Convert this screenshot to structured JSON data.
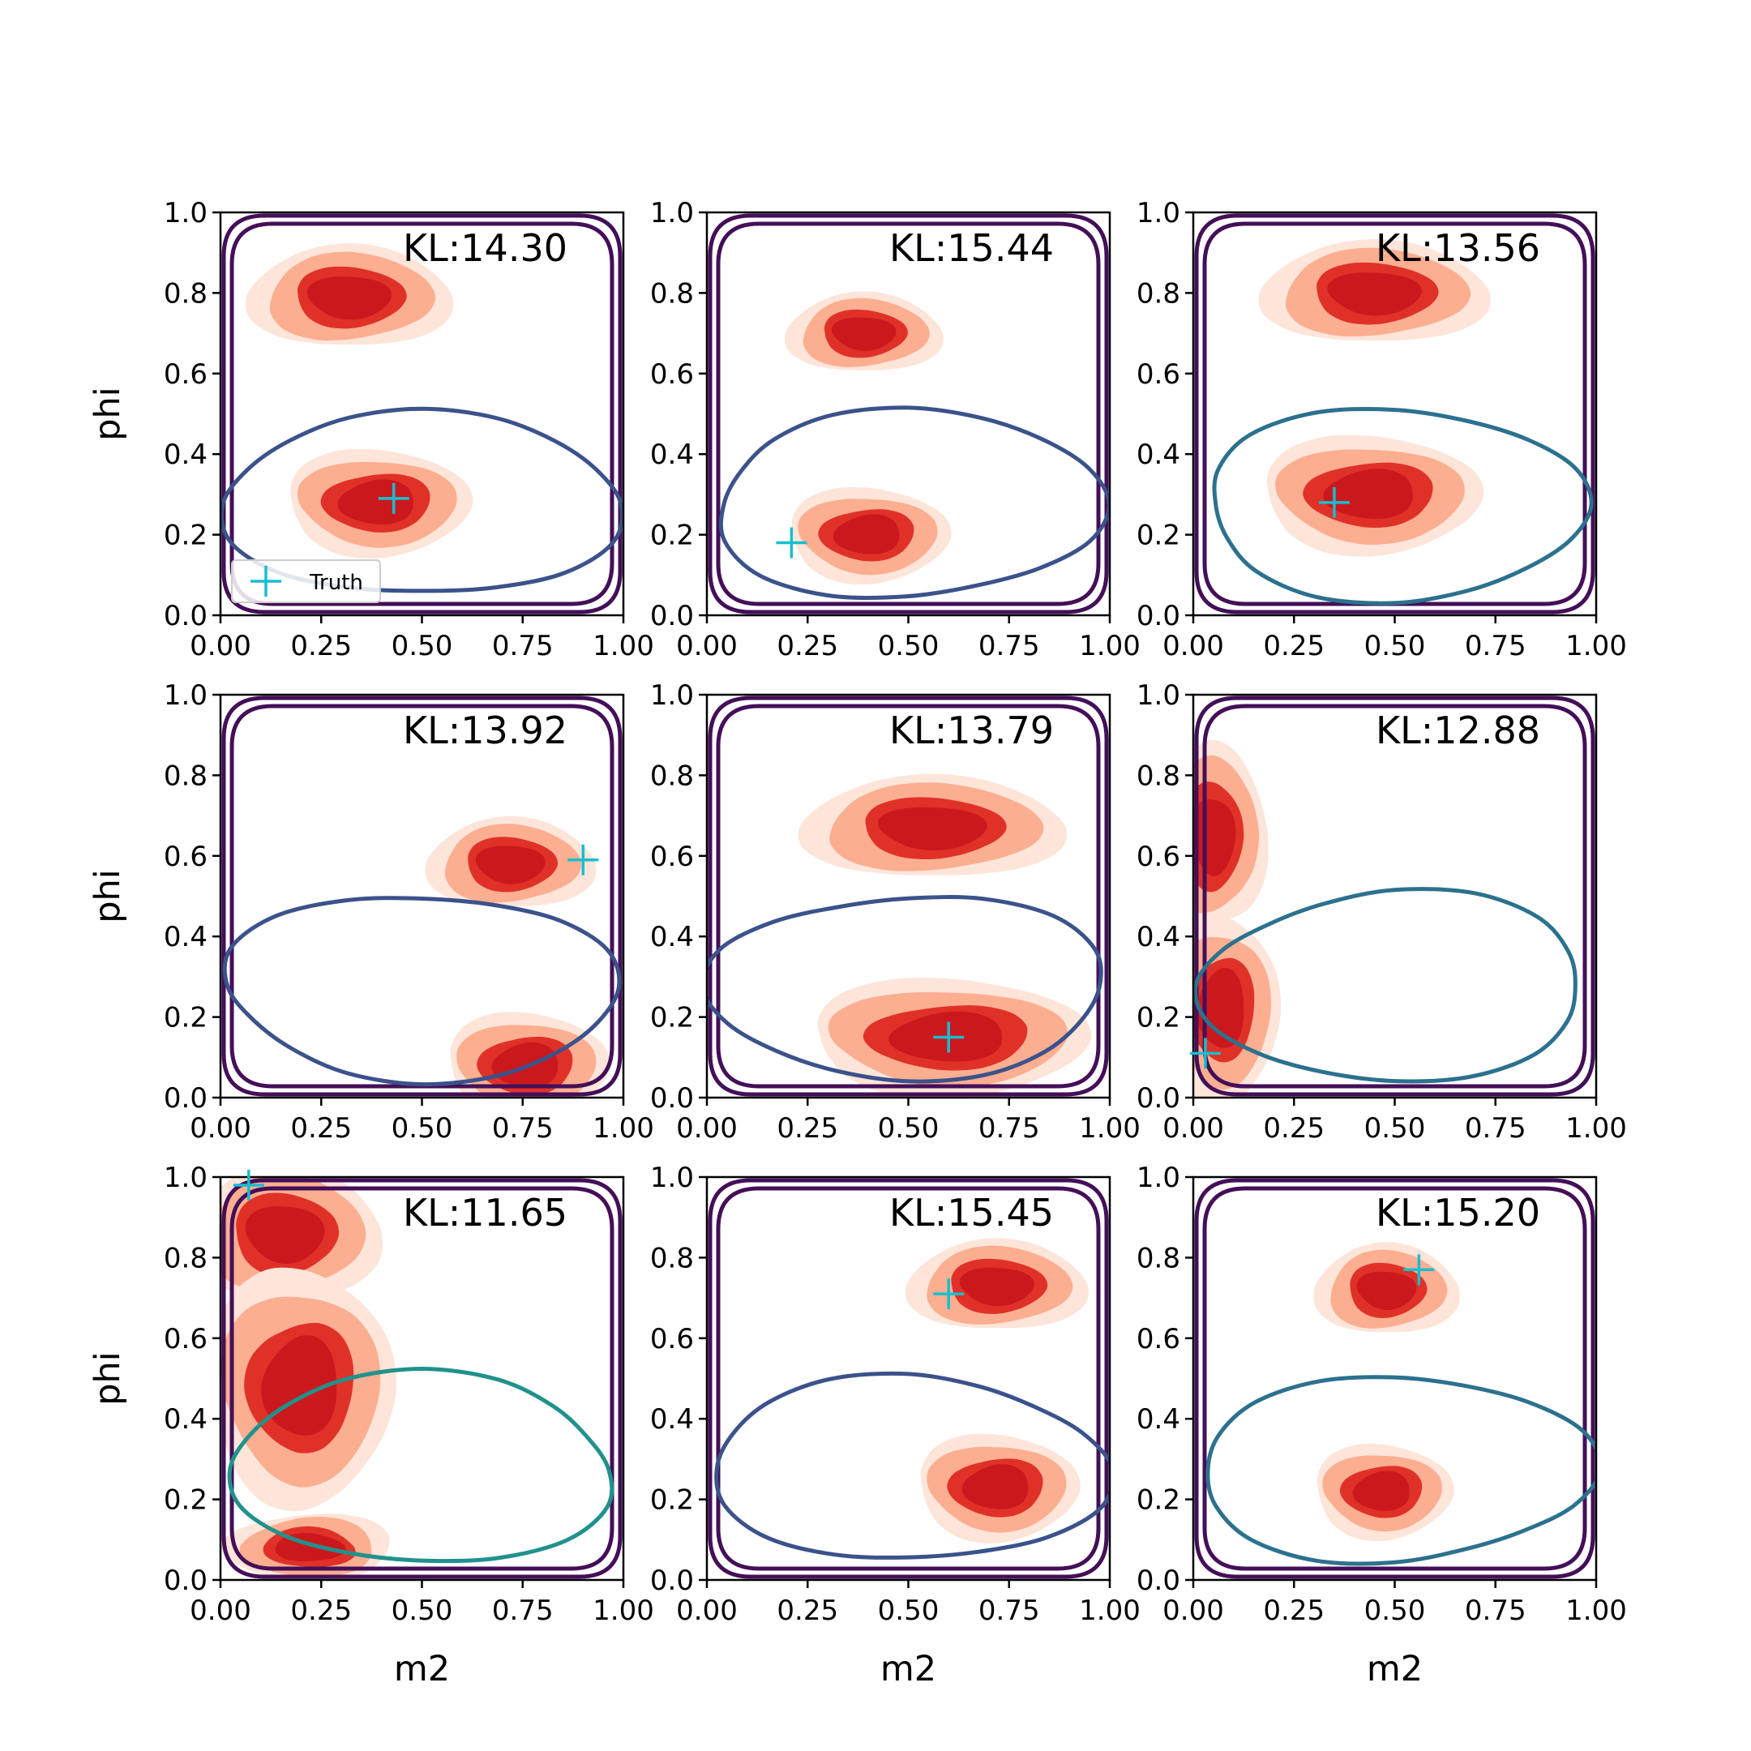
{
  "chart_data": {
    "type": "contour-grid",
    "layout": {
      "rows": 3,
      "cols": 3
    },
    "xlabel": "m2",
    "ylabel": "phi",
    "xlim": [
      0,
      1
    ],
    "ylim": [
      0,
      1
    ],
    "xticks": [
      "0.00",
      "0.25",
      "0.50",
      "0.75",
      "1.00"
    ],
    "yticks": [
      "0.0",
      "0.2",
      "0.4",
      "0.6",
      "0.8",
      "1.0"
    ],
    "legend": {
      "label": "Truth",
      "marker": "+",
      "color": "#17becf",
      "location": "lower left",
      "panel": 0
    },
    "colors": {
      "fill_levels": [
        "#fee5d9",
        "#fcae91",
        "#e03128",
        "#cb181d"
      ],
      "contour_dark": "#440f58",
      "contour_mid": "#3b528b",
      "contour_teal": "#2c718e",
      "contour_green": "#21918c",
      "truth": "#17becf"
    },
    "panels": [
      {
        "kl": "KL:14.30",
        "truth": [
          0.43,
          0.29
        ],
        "blobs": [
          {
            "cx": 0.32,
            "cy": 0.79,
            "rx": 0.17,
            "ry": 0.09
          },
          {
            "cx": 0.39,
            "cy": 0.28,
            "rx": 0.16,
            "ry": 0.09
          }
        ]
      },
      {
        "kl": "KL:15.44",
        "truth": [
          0.21,
          0.18
        ],
        "blobs": [
          {
            "cx": 0.39,
            "cy": 0.7,
            "rx": 0.13,
            "ry": 0.07
          },
          {
            "cx": 0.4,
            "cy": 0.2,
            "rx": 0.14,
            "ry": 0.08
          }
        ]
      },
      {
        "kl": "KL:13.56",
        "truth": [
          0.35,
          0.28
        ],
        "blobs": [
          {
            "cx": 0.45,
            "cy": 0.8,
            "rx": 0.19,
            "ry": 0.09
          },
          {
            "cx": 0.44,
            "cy": 0.3,
            "rx": 0.19,
            "ry": 0.1
          }
        ]
      },
      {
        "kl": "KL:13.92",
        "truth": [
          0.9,
          0.59
        ],
        "blobs": [
          {
            "cx": 0.72,
            "cy": 0.58,
            "rx": 0.14,
            "ry": 0.08
          },
          {
            "cx": 0.76,
            "cy": 0.08,
            "rx": 0.14,
            "ry": 0.09
          }
        ]
      },
      {
        "kl": "KL:13.79",
        "truth": [
          0.6,
          0.15
        ],
        "blobs": [
          {
            "cx": 0.56,
            "cy": 0.67,
            "rx": 0.22,
            "ry": 0.09
          },
          {
            "cx": 0.6,
            "cy": 0.15,
            "rx": 0.24,
            "ry": 0.1
          }
        ]
      },
      {
        "kl": "KL:12.88",
        "truth": [
          0.03,
          0.11
        ],
        "blobs": [
          {
            "cx": 0.05,
            "cy": 0.65,
            "rx": 0.09,
            "ry": 0.16
          },
          {
            "cx": 0.07,
            "cy": 0.22,
            "rx": 0.1,
            "ry": 0.16
          }
        ]
      },
      {
        "kl": "KL:11.65",
        "truth": [
          0.07,
          0.98
        ],
        "blobs": [
          {
            "cx": 0.16,
            "cy": 0.86,
            "rx": 0.16,
            "ry": 0.12
          },
          {
            "cx": 0.2,
            "cy": 0.48,
            "rx": 0.16,
            "ry": 0.2
          },
          {
            "cx": 0.22,
            "cy": 0.08,
            "rx": 0.14,
            "ry": 0.06
          }
        ]
      },
      {
        "kl": "KL:15.45",
        "truth": [
          0.6,
          0.71
        ],
        "blobs": [
          {
            "cx": 0.72,
            "cy": 0.73,
            "rx": 0.15,
            "ry": 0.08
          },
          {
            "cx": 0.72,
            "cy": 0.23,
            "rx": 0.14,
            "ry": 0.09
          }
        ]
      },
      {
        "kl": "KL:15.20",
        "truth": [
          0.56,
          0.77
        ],
        "blobs": [
          {
            "cx": 0.48,
            "cy": 0.72,
            "rx": 0.12,
            "ry": 0.08
          },
          {
            "cx": 0.47,
            "cy": 0.22,
            "rx": 0.12,
            "ry": 0.08
          }
        ]
      }
    ]
  }
}
